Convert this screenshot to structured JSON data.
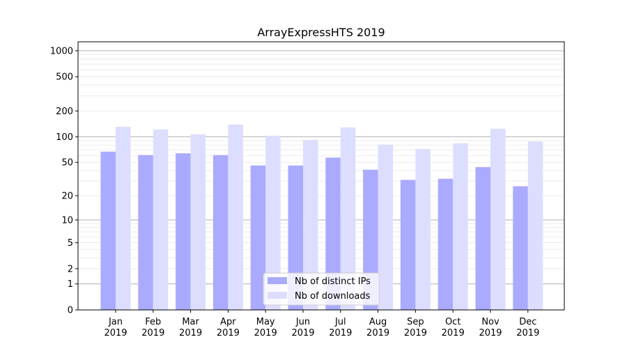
{
  "chart_data": {
    "type": "bar",
    "title": "ArrayExpressHTS 2019",
    "xlabel": "",
    "ylabel": "",
    "yscale": "log(1+y)",
    "ylim": [
      0,
      1270
    ],
    "yticks": [
      0,
      1,
      2,
      5,
      10,
      20,
      50,
      100,
      200,
      500,
      1000
    ],
    "grid": true,
    "legend_position": "bottom-center",
    "categories": [
      "Jan\n2019",
      "Feb\n2019",
      "Mar\n2019",
      "Apr\n2019",
      "May\n2019",
      "Jun\n2019",
      "Jul\n2019",
      "Aug\n2019",
      "Sep\n2019",
      "Oct\n2019",
      "Nov\n2019",
      "Dec\n2019"
    ],
    "series": [
      {
        "name": "Nb of distinct IPs",
        "color": "#aaaaff",
        "values": [
          67,
          61,
          64,
          61,
          46,
          46,
          57,
          41,
          31,
          32,
          44,
          26
        ]
      },
      {
        "name": "Nb of downloads",
        "color": "#ddddff",
        "values": [
          131,
          122,
          107,
          139,
          103,
          92,
          129,
          81,
          72,
          84,
          124,
          88
        ]
      }
    ]
  }
}
